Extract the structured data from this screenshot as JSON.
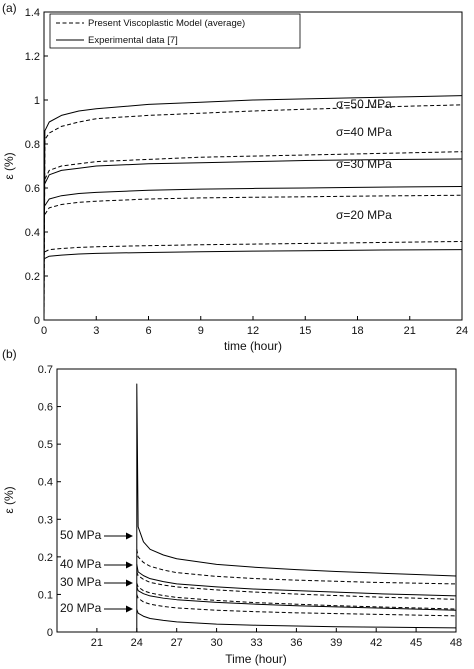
{
  "chart_data": [
    {
      "type": "line",
      "panel_label": "(a)",
      "xlabel": "time (hour)",
      "ylabel": "ε (%)",
      "xlim": [
        0,
        24
      ],
      "ylim": [
        0,
        1.4
      ],
      "xticks": [
        "0",
        "3",
        "6",
        "9",
        "12",
        "15",
        "18",
        "21",
        "24"
      ],
      "yticks": [
        "0",
        "0.2",
        "0.4",
        "0.6",
        "0.8",
        "1",
        "1.2",
        "1.4"
      ],
      "grid": false,
      "legend_position": "top-left",
      "legend": [
        {
          "label": "Present Viscoplastic Model (average)",
          "style": "dashed"
        },
        {
          "label": "Experimental data [7]",
          "style": "solid"
        }
      ],
      "annotations": [
        "σ=50 MPa",
        "σ=40 MPa",
        "σ=30 MPa",
        "σ=20 MPa"
      ],
      "series": [
        {
          "style": "solid",
          "x": [
            0,
            0.05,
            0.3,
            1,
            2,
            3,
            6,
            9,
            12,
            15,
            18,
            21,
            24
          ],
          "y": [
            0,
            0.86,
            0.9,
            0.93,
            0.95,
            0.96,
            0.98,
            0.99,
            1.0,
            1.005,
            1.01,
            1.015,
            1.02
          ]
        },
        {
          "style": "dashed",
          "x": [
            0,
            0.05,
            0.3,
            1,
            2,
            3,
            6,
            9,
            12,
            15,
            18,
            21,
            24
          ],
          "y": [
            0,
            0.82,
            0.85,
            0.88,
            0.9,
            0.915,
            0.93,
            0.94,
            0.95,
            0.958,
            0.965,
            0.972,
            0.978
          ]
        },
        {
          "style": "dashed",
          "x": [
            0.05,
            0.3,
            1,
            2,
            3,
            6,
            9,
            12,
            15,
            18,
            21,
            24
          ],
          "y": [
            0.64,
            0.68,
            0.7,
            0.71,
            0.72,
            0.73,
            0.74,
            0.745,
            0.75,
            0.755,
            0.76,
            0.765
          ]
        },
        {
          "style": "solid",
          "x": [
            0.05,
            0.3,
            1,
            2,
            3,
            6,
            9,
            12,
            15,
            18,
            21,
            24
          ],
          "y": [
            0.62,
            0.66,
            0.68,
            0.69,
            0.7,
            0.71,
            0.715,
            0.72,
            0.725,
            0.728,
            0.73,
            0.732
          ]
        },
        {
          "style": "solid",
          "x": [
            0.05,
            0.3,
            1,
            2,
            3,
            6,
            9,
            12,
            15,
            18,
            21,
            24
          ],
          "y": [
            0.52,
            0.55,
            0.565,
            0.575,
            0.58,
            0.59,
            0.595,
            0.598,
            0.6,
            0.603,
            0.605,
            0.607
          ]
        },
        {
          "style": "dashed",
          "x": [
            0.05,
            0.3,
            1,
            2,
            3,
            6,
            9,
            12,
            15,
            18,
            21,
            24
          ],
          "y": [
            0.48,
            0.51,
            0.525,
            0.535,
            0.54,
            0.55,
            0.555,
            0.558,
            0.56,
            0.563,
            0.565,
            0.567
          ]
        },
        {
          "style": "dashed",
          "x": [
            0.05,
            0.3,
            1,
            2,
            3,
            6,
            9,
            12,
            15,
            18,
            21,
            24
          ],
          "y": [
            0.31,
            0.32,
            0.325,
            0.33,
            0.333,
            0.338,
            0.342,
            0.345,
            0.348,
            0.351,
            0.354,
            0.357
          ]
        },
        {
          "style": "solid",
          "x": [
            0.05,
            0.3,
            1,
            2,
            3,
            6,
            9,
            12,
            15,
            18,
            21,
            24
          ],
          "y": [
            0.28,
            0.29,
            0.295,
            0.3,
            0.303,
            0.307,
            0.31,
            0.313,
            0.315,
            0.317,
            0.319,
            0.32
          ]
        }
      ]
    },
    {
      "type": "line",
      "panel_label": "(b)",
      "xlabel": "Time (hour)",
      "ylabel": "ε (%)",
      "xlim": [
        18,
        48
      ],
      "ylim": [
        0,
        0.7
      ],
      "xticks": [
        "21",
        "24",
        "27",
        "30",
        "33",
        "36",
        "39",
        "42",
        "45",
        "48"
      ],
      "yticks": [
        "0",
        "0.1",
        "0.2",
        "0.3",
        "0.4",
        "0.5",
        "0.6",
        "0.7"
      ],
      "grid": false,
      "annotations": [
        "50 MPa",
        "40 MPa",
        "30 MPa",
        "20 MPa"
      ],
      "series": [
        {
          "style": "solid",
          "x": [
            24,
            24,
            24.1,
            24.5,
            25,
            26,
            27,
            30,
            33,
            36,
            39,
            42,
            45,
            48
          ],
          "y": [
            0,
            0.66,
            0.28,
            0.24,
            0.22,
            0.205,
            0.195,
            0.18,
            0.172,
            0.166,
            0.161,
            0.157,
            0.153,
            0.149
          ]
        },
        {
          "style": "dashed",
          "x": [
            24,
            24.1,
            24.5,
            25,
            26,
            27,
            30,
            33,
            36,
            39,
            42,
            45,
            48
          ],
          "y": [
            0.22,
            0.2,
            0.185,
            0.175,
            0.165,
            0.158,
            0.148,
            0.142,
            0.138,
            0.135,
            0.132,
            0.13,
            0.128
          ]
        },
        {
          "style": "solid",
          "x": [
            24,
            24.1,
            24.5,
            25,
            26,
            27,
            30,
            33,
            36,
            39,
            42,
            45,
            48
          ],
          "y": [
            0.18,
            0.16,
            0.15,
            0.142,
            0.134,
            0.128,
            0.12,
            0.114,
            0.11,
            0.106,
            0.102,
            0.099,
            0.096
          ]
        },
        {
          "style": "dashed",
          "x": [
            24,
            24.1,
            24.5,
            25,
            26,
            27,
            30,
            33,
            36,
            39,
            42,
            45,
            48
          ],
          "y": [
            0.16,
            0.15,
            0.14,
            0.132,
            0.125,
            0.12,
            0.112,
            0.106,
            0.101,
            0.097,
            0.093,
            0.09,
            0.087
          ]
        },
        {
          "style": "dashed",
          "x": [
            24,
            24.1,
            24.5,
            25,
            26,
            27,
            30,
            33,
            36,
            39,
            42,
            45,
            48
          ],
          "y": [
            0.13,
            0.12,
            0.11,
            0.104,
            0.097,
            0.092,
            0.084,
            0.078,
            0.074,
            0.07,
            0.067,
            0.064,
            0.061
          ]
        },
        {
          "style": "solid",
          "x": [
            24,
            24.1,
            24.5,
            25,
            26,
            27,
            30,
            33,
            36,
            39,
            42,
            45,
            48
          ],
          "y": [
            0.12,
            0.11,
            0.102,
            0.096,
            0.09,
            0.086,
            0.079,
            0.074,
            0.07,
            0.067,
            0.064,
            0.061,
            0.058
          ]
        },
        {
          "style": "dashed",
          "x": [
            24,
            24.1,
            24.5,
            25,
            26,
            27,
            30,
            33,
            36,
            39,
            42,
            45,
            48
          ],
          "y": [
            0.1,
            0.09,
            0.08,
            0.074,
            0.068,
            0.064,
            0.058,
            0.054,
            0.051,
            0.049,
            0.047,
            0.045,
            0.043
          ]
        },
        {
          "style": "solid",
          "x": [
            24,
            24.1,
            24.5,
            25,
            26,
            27,
            30,
            33,
            36,
            39,
            42,
            45,
            48
          ],
          "y": [
            0.06,
            0.05,
            0.042,
            0.036,
            0.031,
            0.027,
            0.021,
            0.018,
            0.016,
            0.014,
            0.013,
            0.012,
            0.011
          ]
        }
      ]
    }
  ]
}
